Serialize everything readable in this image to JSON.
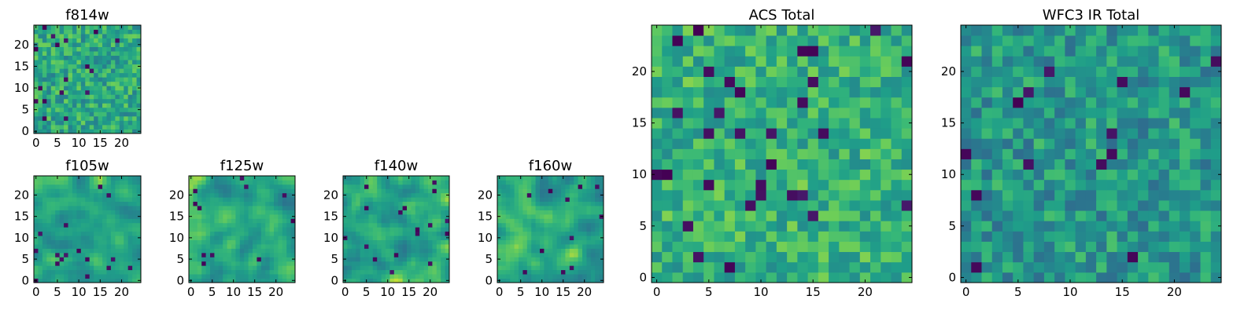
{
  "chart_data": [
    {
      "type": "heatmap",
      "title": "f814w",
      "grid_size": 25,
      "xticks": [
        "0",
        "5",
        "10",
        "15",
        "20"
      ],
      "yticks": [
        "0",
        "5",
        "10",
        "15",
        "20"
      ],
      "xlim": [
        -0.5,
        24.5
      ],
      "ylim": [
        -0.5,
        24.5
      ],
      "colormap": "viridis",
      "value_range": [
        0,
        1
      ],
      "texture": "pixel-noise",
      "seed": 11,
      "mean": 0.68,
      "spread": 0.2,
      "dark_rate": 0.04
    },
    {
      "type": "heatmap",
      "title": "f105w",
      "grid_size": 25,
      "xticks": [
        "0",
        "5",
        "10",
        "15",
        "20"
      ],
      "yticks": [
        "0",
        "5",
        "10",
        "15",
        "20"
      ],
      "xlim": [
        -0.5,
        24.5
      ],
      "ylim": [
        -0.5,
        24.5
      ],
      "colormap": "viridis",
      "value_range": [
        0,
        1
      ],
      "texture": "smooth-blobs",
      "seed": 23,
      "mean": 0.7,
      "spread": 0.22,
      "dark_rate": 0.02
    },
    {
      "type": "heatmap",
      "title": "f125w",
      "grid_size": 25,
      "xticks": [
        "0",
        "5",
        "10",
        "15",
        "20"
      ],
      "yticks": [
        "0",
        "5",
        "10",
        "15",
        "20"
      ],
      "xlim": [
        -0.5,
        24.5
      ],
      "ylim": [
        -0.5,
        24.5
      ],
      "colormap": "viridis",
      "value_range": [
        0,
        1
      ],
      "texture": "smooth-blobs",
      "seed": 37,
      "mean": 0.68,
      "spread": 0.24,
      "dark_rate": 0.02
    },
    {
      "type": "heatmap",
      "title": "f140w",
      "grid_size": 25,
      "xticks": [
        "0",
        "5",
        "10",
        "15",
        "20"
      ],
      "yticks": [
        "0",
        "5",
        "10",
        "15",
        "20"
      ],
      "xlim": [
        -0.5,
        24.5
      ],
      "ylim": [
        -0.5,
        24.5
      ],
      "colormap": "viridis",
      "value_range": [
        0,
        1
      ],
      "texture": "smooth-blobs",
      "seed": 41,
      "mean": 0.7,
      "spread": 0.25,
      "dark_rate": 0.02
    },
    {
      "type": "heatmap",
      "title": "f160w",
      "grid_size": 25,
      "xticks": [
        "0",
        "5",
        "10",
        "15",
        "20"
      ],
      "yticks": [
        "0",
        "5",
        "10",
        "15",
        "20"
      ],
      "xlim": [
        -0.5,
        24.5
      ],
      "ylim": [
        -0.5,
        24.5
      ],
      "colormap": "viridis",
      "value_range": [
        0,
        1
      ],
      "texture": "smooth-blobs",
      "seed": 53,
      "mean": 0.68,
      "spread": 0.24,
      "dark_rate": 0.02
    },
    {
      "type": "heatmap",
      "title": "ACS Total",
      "grid_size": 25,
      "xticks": [
        "0",
        "5",
        "10",
        "15",
        "20"
      ],
      "yticks": [
        "0",
        "5",
        "10",
        "15",
        "20"
      ],
      "xlim": [
        -0.5,
        24.5
      ],
      "ylim": [
        -0.5,
        24.5
      ],
      "colormap": "viridis",
      "value_range": [
        0,
        1
      ],
      "texture": "pixel-noise",
      "seed": 67,
      "mean": 0.72,
      "spread": 0.18,
      "dark_rate": 0.035
    },
    {
      "type": "heatmap",
      "title": "WFC3 IR Total",
      "grid_size": 25,
      "xticks": [
        "0",
        "5",
        "10",
        "15",
        "20"
      ],
      "yticks": [
        "0",
        "5",
        "10",
        "15",
        "20"
      ],
      "xlim": [
        -0.5,
        24.5
      ],
      "ylim": [
        -0.5,
        24.5
      ],
      "colormap": "viridis",
      "value_range": [
        0,
        1
      ],
      "texture": "pixel-noise",
      "seed": 79,
      "mean": 0.6,
      "spread": 0.2,
      "dark_rate": 0.035
    }
  ]
}
